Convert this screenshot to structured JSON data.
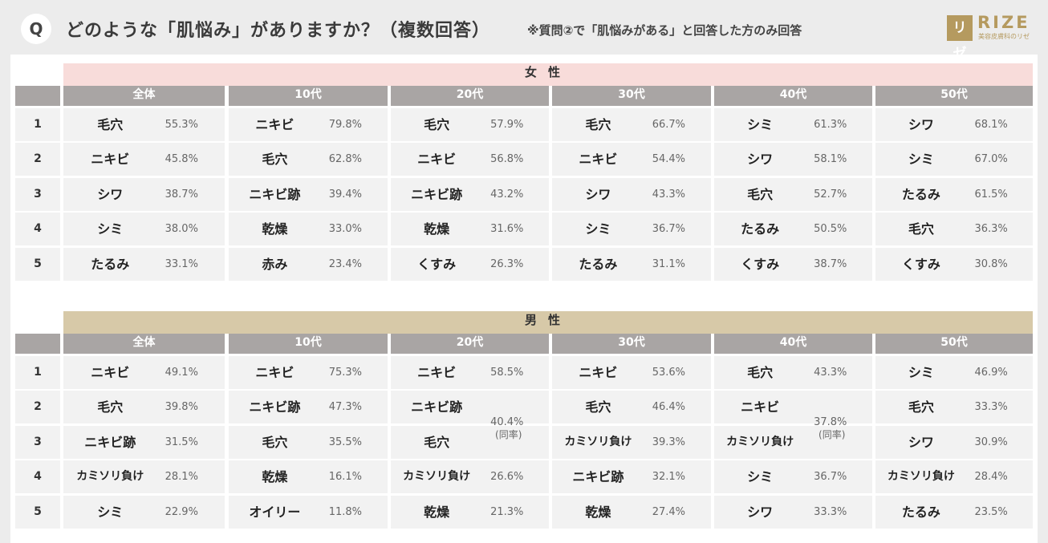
{
  "header": {
    "q_badge": "Q",
    "title": "どのような「肌悩み」がありますか？（複数回答）",
    "note": "※質問②で「肌悩みがある」と回答した方のみ回答",
    "logo_box": "リゼ",
    "logo_text": "RIZE",
    "logo_sub": "美容皮膚科のリゼ"
  },
  "tie_note": "(同率)",
  "columns": [
    "全体",
    "10代",
    "20代",
    "30代",
    "40代",
    "50代"
  ],
  "ranks": [
    "1",
    "2",
    "3",
    "4",
    "5"
  ],
  "tables": [
    {
      "gender": "女性",
      "data": [
        [
          [
            "毛穴",
            "55.3%"
          ],
          [
            "ニキビ",
            "45.8%"
          ],
          [
            "シワ",
            "38.7%"
          ],
          [
            "シミ",
            "38.0%"
          ],
          [
            "たるみ",
            "33.1%"
          ]
        ],
        [
          [
            "ニキビ",
            "79.8%"
          ],
          [
            "毛穴",
            "62.8%"
          ],
          [
            "ニキビ跡",
            "39.4%"
          ],
          [
            "乾燥",
            "33.0%"
          ],
          [
            "赤み",
            "23.4%"
          ]
        ],
        [
          [
            "毛穴",
            "57.9%"
          ],
          [
            "ニキビ",
            "56.8%"
          ],
          [
            "ニキビ跡",
            "43.2%"
          ],
          [
            "乾燥",
            "31.6%"
          ],
          [
            "くすみ",
            "26.3%"
          ]
        ],
        [
          [
            "毛穴",
            "66.7%"
          ],
          [
            "ニキビ",
            "54.4%"
          ],
          [
            "シワ",
            "43.3%"
          ],
          [
            "シミ",
            "36.7%"
          ],
          [
            "たるみ",
            "31.1%"
          ]
        ],
        [
          [
            "シミ",
            "61.3%"
          ],
          [
            "シワ",
            "58.1%"
          ],
          [
            "毛穴",
            "52.7%"
          ],
          [
            "たるみ",
            "50.5%"
          ],
          [
            "くすみ",
            "38.7%"
          ]
        ],
        [
          [
            "シワ",
            "68.1%"
          ],
          [
            "シミ",
            "67.0%"
          ],
          [
            "たるみ",
            "61.5%"
          ],
          [
            "毛穴",
            "36.3%"
          ],
          [
            "くすみ",
            "30.8%"
          ]
        ]
      ]
    },
    {
      "gender": "男性",
      "data": [
        [
          [
            "ニキビ",
            "49.1%"
          ],
          [
            "毛穴",
            "39.8%"
          ],
          [
            "ニキビ跡",
            "31.5%"
          ],
          [
            "カミソリ負け",
            "28.1%"
          ],
          [
            "シミ",
            "22.9%"
          ]
        ],
        [
          [
            "ニキビ",
            "75.3%"
          ],
          [
            "ニキビ跡",
            "47.3%"
          ],
          [
            "毛穴",
            "35.5%"
          ],
          [
            "乾燥",
            "16.1%"
          ],
          [
            "オイリー",
            "11.8%"
          ]
        ],
        [
          [
            "ニキビ",
            "58.5%"
          ],
          [
            "ニキビ跡",
            ""
          ],
          [
            "毛穴",
            ""
          ],
          [
            "カミソリ負け",
            "26.6%"
          ],
          [
            "乾燥",
            "21.3%"
          ]
        ],
        [
          [
            "ニキビ",
            "53.6%"
          ],
          [
            "毛穴",
            "46.4%"
          ],
          [
            "カミソリ負け",
            "39.3%"
          ],
          [
            "ニキビ跡",
            "32.1%"
          ],
          [
            "乾燥",
            "27.4%"
          ]
        ],
        [
          [
            "毛穴",
            "43.3%"
          ],
          [
            "ニキビ",
            ""
          ],
          [
            "カミソリ負け",
            ""
          ],
          [
            "シミ",
            "36.7%"
          ],
          [
            "シワ",
            "33.3%"
          ]
        ],
        [
          [
            "シミ",
            "46.9%"
          ],
          [
            "毛穴",
            "33.3%"
          ],
          [
            "シワ",
            "30.9%"
          ],
          [
            "カミソリ負け",
            "28.4%"
          ],
          [
            "たるみ",
            "23.5%"
          ]
        ]
      ],
      "ties": [
        {
          "col": 2,
          "rows": [
            1,
            2
          ],
          "value": "40.4%"
        },
        {
          "col": 4,
          "rows": [
            1,
            2
          ],
          "value": "37.8%"
        }
      ]
    }
  ]
}
